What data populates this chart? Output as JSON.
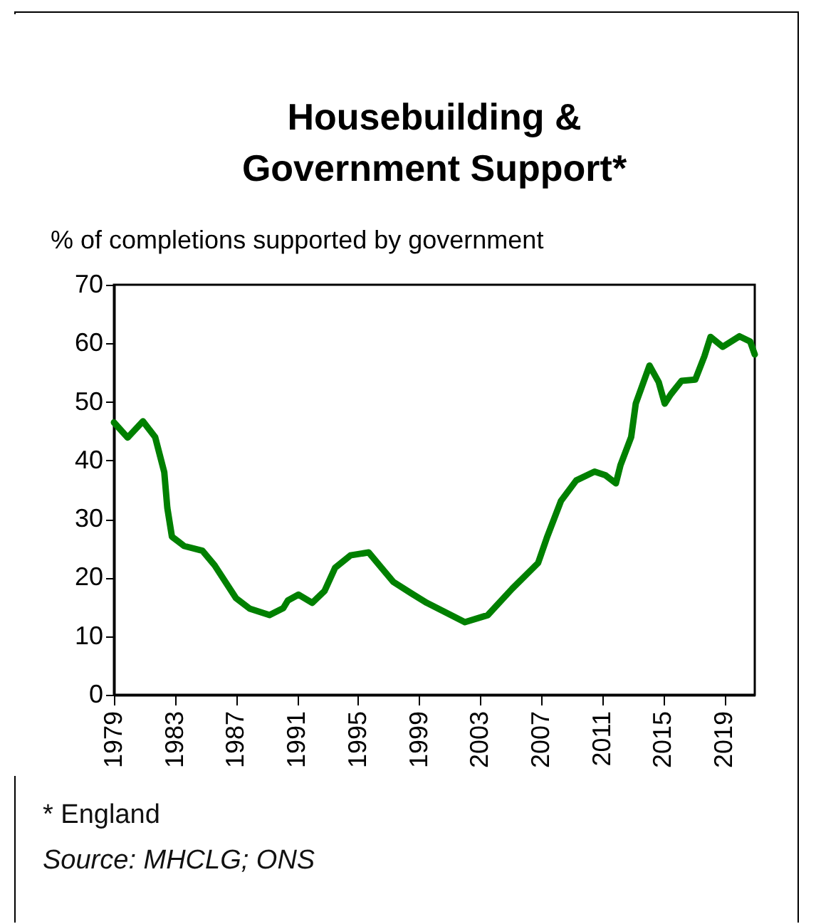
{
  "chart_data": {
    "type": "line",
    "title": [
      "Housebuilding  &",
      "Government Support*"
    ],
    "ylabel": "% of completions supported by government",
    "annotations": [
      "* England",
      "Source: MHCLG; ONS"
    ],
    "x": [
      1979,
      1979.9,
      1980.9,
      1981.7,
      1982.3,
      1982.5,
      1982.8,
      1983.6,
      1984.8,
      1985.6,
      1987.0,
      1987.9,
      1989.2,
      1990.1,
      1990.4,
      1991.1,
      1992.0,
      1992.8,
      1993.5,
      1994.5,
      1995.7,
      1996.4,
      1997.3,
      1998.5,
      1999.5,
      2002.0,
      2003.5,
      2005.1,
      2006.8,
      2007.4,
      2008.3,
      2009.3,
      2010.5,
      2011.2,
      2011.9,
      2012.2,
      2012.9,
      2013.2,
      2014.1,
      2014.7,
      2015.1,
      2015.5,
      2016.2,
      2017.1,
      2017.7,
      2018.1,
      2018.9,
      2020.0,
      2020.7,
      2021
    ],
    "series": [
      {
        "color": "#008000",
        "values": [
          46.5,
          43.9,
          46.7,
          44,
          38,
          31.9,
          27,
          25.4,
          24.6,
          22.1,
          16.5,
          14.7,
          13.6,
          14.8,
          16.1,
          17.1,
          15.7,
          17.7,
          21.7,
          23.8,
          24.3,
          22.1,
          19.3,
          17.3,
          15.7,
          12.4,
          13.6,
          18.1,
          22.5,
          27,
          33.1,
          36.6,
          38.1,
          37.5,
          36.1,
          39.2,
          44,
          49.7,
          56.2,
          53.4,
          49.7,
          51.3,
          53.6,
          53.8,
          57.8,
          61.1,
          59.4,
          61.2,
          60.3,
          58.1
        ]
      }
    ],
    "xlim": [
      1979,
      2021
    ],
    "xticks": [
      1979,
      1983,
      1987,
      1991,
      1995,
      1999,
      2003,
      2007,
      2011,
      2015,
      2019
    ],
    "ylim": [
      0,
      70
    ],
    "yticks": [
      0,
      10,
      20,
      30,
      40,
      50,
      60,
      70
    ],
    "grid": false,
    "marker": "none",
    "line_style": "solid"
  }
}
